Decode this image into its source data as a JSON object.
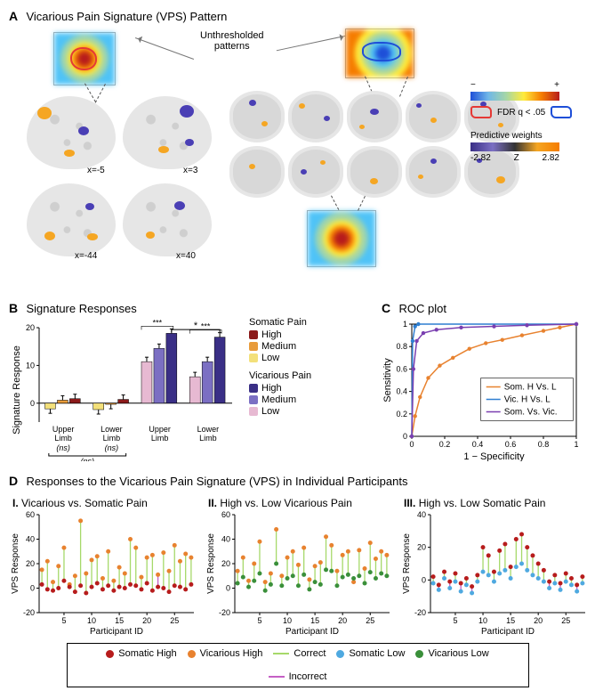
{
  "figure": {
    "panelA": {
      "label": "A",
      "title": "Vicarious Pain Signature (VPS) Pattern",
      "unthresholded_label": "Unthresholded\npatterns",
      "slice_coords": [
        "x=-5",
        "x=3",
        "x=-44",
        "x=40"
      ],
      "fdr_label": "FDR q < .05",
      "colorbar_spectrum": {
        "left": "−",
        "right": "+"
      },
      "weights_label": "Predictive weights",
      "weights_z": "Z",
      "weights_min": "-2.82",
      "weights_max": "2.82",
      "colors": {
        "pos_blob": "#f5a623",
        "neg_blob": "#4a3fb5",
        "fdr_red": "#e53935",
        "fdr_blue": "#1e4fd8"
      }
    },
    "panelB": {
      "label": "B",
      "title": "Signature Responses",
      "ylabel": "Signature Response",
      "ylim": [
        -5,
        20
      ],
      "yticks": [
        0,
        10,
        20
      ],
      "groups": [
        "Upper Limb",
        "Lower Limb",
        "Upper Limb",
        "Lower Limb"
      ],
      "group_ns": [
        "(ns)",
        "(ns)"
      ],
      "overall_ns": "(ns)",
      "sig_star": "*",
      "sig_triple": "***",
      "somatic": {
        "colors": {
          "High": "#8b1a1a",
          "Medium": "#e89b3a",
          "Low": "#f3e07a"
        },
        "upper": {
          "Low": -1.5,
          "Medium": 0.8,
          "High": 1.2
        },
        "lower": {
          "Low": -1.7,
          "Medium": -0.3,
          "High": 1.0
        }
      },
      "vicarious": {
        "colors": {
          "High": "#3a2f86",
          "Medium": "#7b6fc3",
          "Low": "#e7b9d2"
        },
        "upper": {
          "Low": 11,
          "Medium": 14.5,
          "High": 18.5
        },
        "lower": {
          "Low": 7,
          "Medium": 11,
          "High": 17.5
        }
      },
      "legend": {
        "somatic_title": "Somatic Pain",
        "vicarious_title": "Vicarious Pain",
        "levels": [
          "High",
          "Medium",
          "Low"
        ]
      }
    },
    "panelC": {
      "label": "C",
      "title": "ROC plot",
      "xlabel": "1 − Specificity",
      "ylabel": "Sensitivity",
      "xlim": [
        0,
        1
      ],
      "ylim": [
        0,
        1
      ],
      "xticks": [
        0,
        0.2,
        0.4,
        0.6,
        0.8,
        1
      ],
      "yticks": [
        0,
        0.2,
        0.4,
        0.6,
        0.8,
        1
      ],
      "curves": {
        "som": {
          "label": "Som. H Vs. L",
          "color": "#e8822f",
          "points": [
            [
              0,
              0
            ],
            [
              0.02,
              0.18
            ],
            [
              0.05,
              0.35
            ],
            [
              0.1,
              0.52
            ],
            [
              0.17,
              0.63
            ],
            [
              0.25,
              0.7
            ],
            [
              0.35,
              0.78
            ],
            [
              0.45,
              0.83
            ],
            [
              0.55,
              0.86
            ],
            [
              0.67,
              0.9
            ],
            [
              0.8,
              0.94
            ],
            [
              0.9,
              0.97
            ],
            [
              1,
              1
            ]
          ]
        },
        "vic": {
          "label": "Vic. H Vs. L",
          "color": "#2f7fd1",
          "points": [
            [
              0,
              0
            ],
            [
              0.005,
              0.85
            ],
            [
              0.02,
              0.98
            ],
            [
              0.04,
              1
            ],
            [
              1,
              1
            ]
          ]
        },
        "sv": {
          "label": "Som. Vs. Vic.",
          "color": "#7a3fb0",
          "points": [
            [
              0,
              0
            ],
            [
              0.01,
              0.6
            ],
            [
              0.03,
              0.85
            ],
            [
              0.07,
              0.92
            ],
            [
              0.15,
              0.95
            ],
            [
              0.3,
              0.97
            ],
            [
              0.5,
              0.98
            ],
            [
              0.7,
              0.99
            ],
            [
              1,
              1
            ]
          ]
        }
      }
    },
    "panelD": {
      "label": "D",
      "title": "Responses to the Vicarious Pain Signature (VPS) in Individual Participants",
      "sub": {
        "I": {
          "roman": "I.",
          "title": "Vicarious vs. Somatic Pain",
          "ylim": [
            -20,
            60
          ]
        },
        "II": {
          "roman": "II.",
          "title": "High vs. Low Vicarious Pain",
          "ylim": [
            -20,
            60
          ]
        },
        "III": {
          "roman": "III.",
          "title": "High vs. Low Somatic Pain",
          "ylim": [
            -20,
            40
          ]
        }
      },
      "xlabel": "Participant ID",
      "ylabel": "VPS Response",
      "n": 28,
      "xticks": [
        5,
        10,
        15,
        20,
        25
      ],
      "I_yticks": [
        -20,
        0,
        20,
        40,
        60
      ],
      "III_yticks": [
        -20,
        0,
        20,
        40
      ],
      "colors": {
        "som_high": "#b71c1c",
        "som_low": "#4fa9e0",
        "vic_high": "#e8822f",
        "vic_low": "#3a8f3a",
        "correct": "#a6d96a",
        "incorrect": "#c560c5"
      },
      "legend": {
        "som_high": "Somatic High",
        "vic_high": "Vicarious High",
        "correct": "Correct",
        "som_low": "Somatic Low",
        "vic_low": "Vicarious Low",
        "incorrect": "Incorrect"
      },
      "data_I": {
        "top": [
          15,
          22,
          5,
          18,
          33,
          3,
          10,
          55,
          12,
          23,
          26,
          8,
          30,
          6,
          17,
          12,
          40,
          33,
          9,
          25,
          27,
          11,
          29,
          14,
          35,
          22,
          28,
          25
        ],
        "bot": [
          3,
          -1,
          -2,
          0,
          6,
          1,
          -3,
          2,
          -4,
          1,
          4,
          -1,
          2,
          -2,
          1,
          0,
          3,
          2,
          -1,
          4,
          -2,
          1,
          0,
          -3,
          2,
          1,
          -1,
          3
        ],
        "correct": [
          1,
          1,
          1,
          1,
          1,
          1,
          1,
          1,
          1,
          1,
          1,
          1,
          1,
          1,
          1,
          1,
          1,
          1,
          1,
          1,
          1,
          0,
          1,
          1,
          1,
          1,
          1,
          1
        ]
      },
      "data_II": {
        "top": [
          14,
          25,
          6,
          20,
          38,
          5,
          12,
          48,
          10,
          25,
          30,
          19,
          33,
          7,
          18,
          21,
          42,
          35,
          14,
          27,
          30,
          5,
          31,
          16,
          37,
          24,
          30,
          27
        ],
        "bot": [
          4,
          9,
          1,
          6,
          12,
          -2,
          3,
          20,
          2,
          8,
          10,
          2,
          11,
          -1,
          5,
          3,
          15,
          14,
          2,
          9,
          11,
          8,
          10,
          4,
          13,
          8,
          12,
          10
        ],
        "correct": [
          1,
          1,
          1,
          1,
          1,
          1,
          1,
          1,
          1,
          1,
          1,
          1,
          1,
          1,
          1,
          1,
          1,
          1,
          1,
          1,
          1,
          0,
          1,
          1,
          1,
          1,
          1,
          1
        ]
      },
      "data_III": {
        "top": [
          2,
          -3,
          5,
          -1,
          4,
          -2,
          1,
          -4,
          3,
          20,
          15,
          5,
          18,
          22,
          8,
          25,
          28,
          20,
          15,
          10,
          6,
          -1,
          3,
          -2,
          4,
          1,
          -3,
          2
        ],
        "bot": [
          -2,
          -6,
          1,
          -5,
          -1,
          -7,
          -3,
          -8,
          -1,
          5,
          3,
          -1,
          4,
          6,
          1,
          8,
          10,
          6,
          3,
          1,
          -1,
          -5,
          -2,
          -6,
          -1,
          -3,
          -7,
          -2
        ],
        "correct": [
          1,
          0,
          1,
          0,
          1,
          0,
          1,
          0,
          1,
          1,
          1,
          1,
          1,
          1,
          1,
          1,
          1,
          1,
          1,
          1,
          1,
          0,
          1,
          0,
          1,
          1,
          0,
          1
        ]
      }
    }
  }
}
